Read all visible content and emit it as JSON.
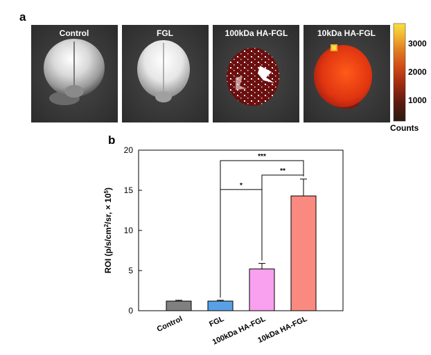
{
  "panel_a": {
    "label": "a",
    "images": [
      {
        "title": "Control",
        "type": "brain-photo"
      },
      {
        "title": "FGL",
        "type": "brain-photo"
      },
      {
        "title": "100kDa HA-FGL",
        "type": "fluorescence-overlay-speckled"
      },
      {
        "title": "10kDa HA-FGL",
        "type": "fluorescence-overlay-strong"
      }
    ],
    "colorbar": {
      "ticks": [
        "3000",
        "2000",
        "1000"
      ],
      "unit_label": "Counts",
      "colors": [
        "#2a1a12",
        "#5a1a10",
        "#a02a10",
        "#d04a18",
        "#e07a20",
        "#f0b030",
        "#f8e040"
      ]
    }
  },
  "panel_b": {
    "label": "b",
    "chart_data": {
      "type": "bar",
      "categories": [
        "Control",
        "FGL",
        "100kDa HA-FGL",
        "10kDa HA-FGL"
      ],
      "values": [
        1.2,
        1.2,
        5.2,
        14.3
      ],
      "errors": [
        0.1,
        0.1,
        0.7,
        2.1
      ],
      "colors": [
        "#808080",
        "#5aa0e6",
        "#f9a0ee",
        "#fa8a80"
      ],
      "ylabel": "ROI (p/s/cm²/sr, × 10⁵)",
      "ylabel_parts": {
        "a": "ROI (p/s/cm",
        "sup1": "2",
        "b": "/sr, × 10",
        "sup2": "5",
        "c": ")"
      },
      "ylim": [
        0,
        20
      ],
      "yticks": [
        "0",
        "5",
        "10",
        "15",
        "20"
      ],
      "grid": false,
      "significance": [
        {
          "from": "FGL",
          "to": "100kDa HA-FGL",
          "label": "*"
        },
        {
          "from": "100kDa HA-FGL",
          "to": "10kDa HA-FGL",
          "label": "**"
        },
        {
          "from": "FGL",
          "to": "10kDa HA-FGL",
          "label": "***"
        }
      ]
    }
  }
}
